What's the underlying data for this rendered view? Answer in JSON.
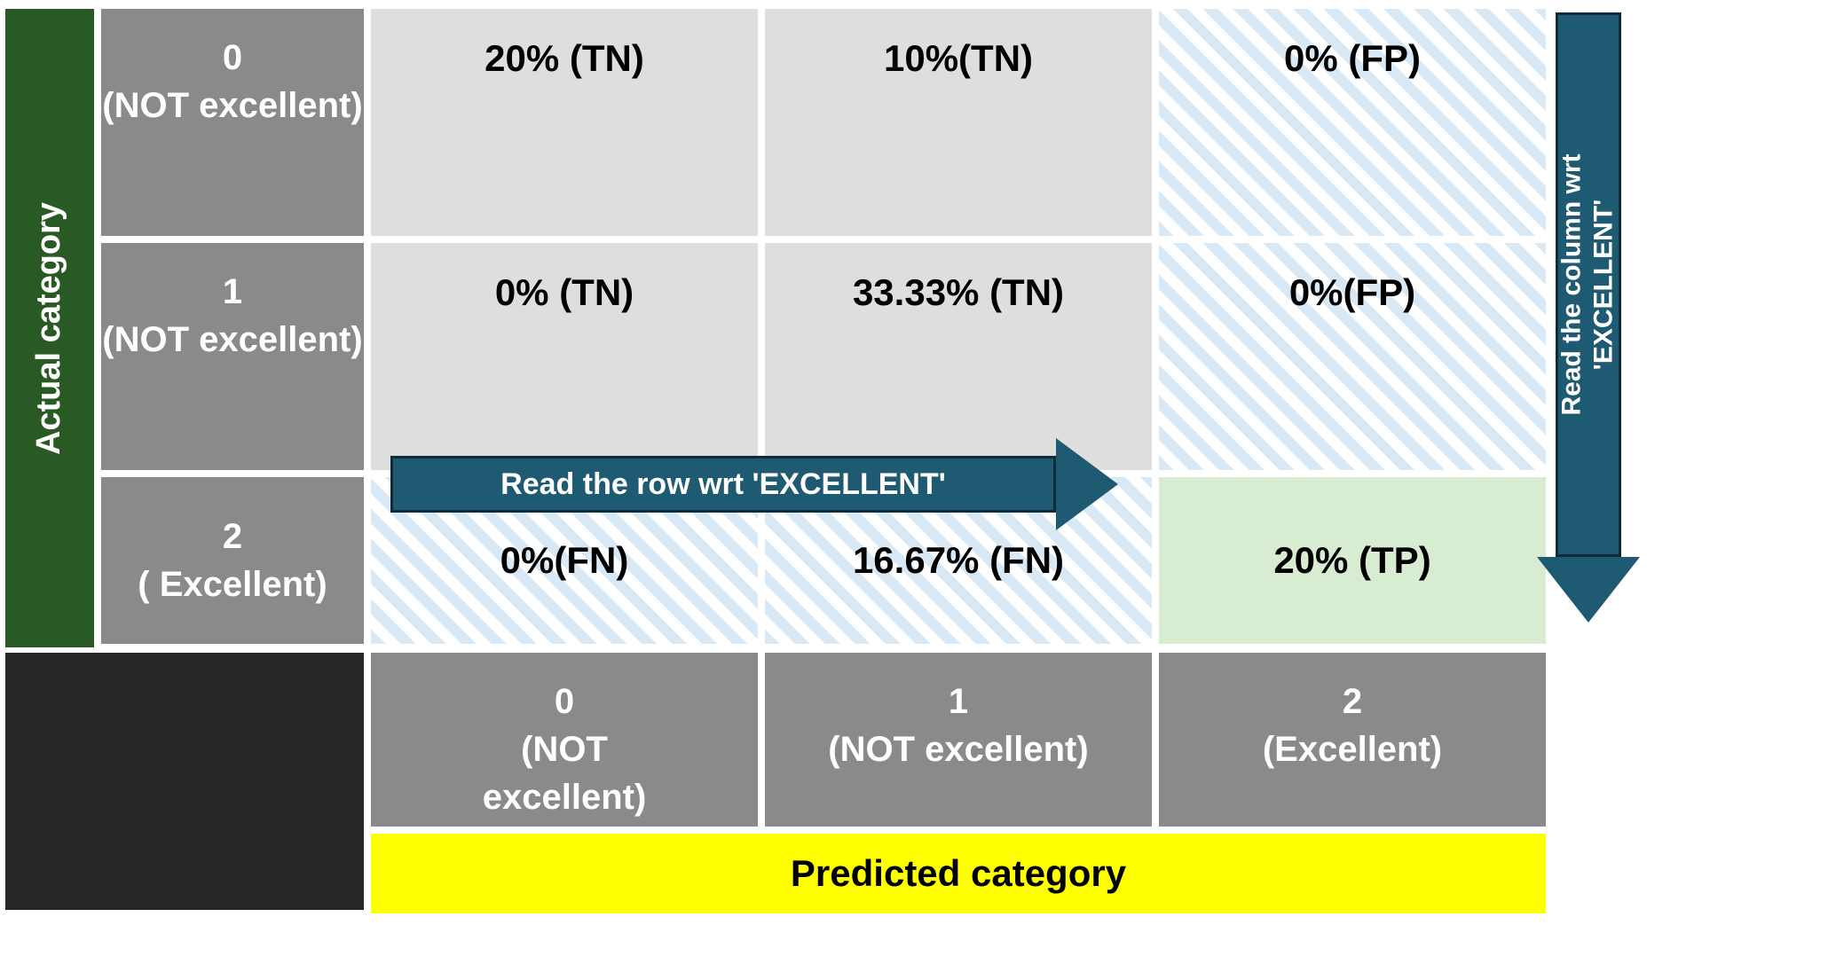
{
  "colors": {
    "axis_y_bg": "#2a5a23",
    "axis_y_text": "#ffffff",
    "rowhdr_bg": "#8a8a8a",
    "colhdr_bg": "#8a8a8a",
    "black_block": "#262626",
    "cell_tn_bg": "#dedede",
    "cell_tp_bg": "#d7ecd1",
    "hatch_light": "#d9e8f5",
    "hatch_white": "#ffffff",
    "pred_bg": "#ffff00",
    "pred_text": "#000000",
    "arrow_bg": "#1f5a73",
    "arrow_border": "#0d2b38",
    "cell_text": "#000000"
  },
  "fontsize": {
    "axis": 38,
    "rowhdr": 40,
    "cell": 42,
    "colhdr": 40,
    "pred": 42,
    "arrow": 34,
    "arrow_v": 30
  },
  "axis": {
    "y": "Actual category",
    "x": "Predicted category"
  },
  "row_headers": [
    {
      "line1": "0",
      "line2": "(NOT excellent)"
    },
    {
      "line1": "1",
      "line2": "(NOT excellent)"
    },
    {
      "line1": "2",
      "line2": "( Excellent)"
    }
  ],
  "col_headers": [
    {
      "line1": "0",
      "line2": "(NOT",
      "line3": "excellent)"
    },
    {
      "line1": "1",
      "line2": "(NOT excellent)",
      "line3": ""
    },
    {
      "line1": "2",
      "line2": "(Excellent)",
      "line3": ""
    }
  ],
  "cells": {
    "r0c0": "20% (TN)",
    "r0c1": "10%(TN)",
    "r0c2": "0% (FP)",
    "r1c0": "0% (TN)",
    "r1c1": "33.33% (TN)",
    "r1c2": "0%(FP)",
    "r2c0": "0%(FN)",
    "r2c1": "16.67% (FN)",
    "r2c2": "20% (TP)"
  },
  "cell_style": {
    "r0c0": "tn",
    "r0c1": "tn",
    "r0c2": "hatch",
    "r1c0": "tn",
    "r1c1": "tn",
    "r1c2": "hatch",
    "r2c0": "hatch",
    "r2c1": "hatch",
    "r2c2": "tp"
  },
  "arrows": {
    "row": "Read the row wrt  'EXCELLENT'",
    "col_line1": "Read the column wrt",
    "col_line2": "'EXCELLENT'"
  }
}
